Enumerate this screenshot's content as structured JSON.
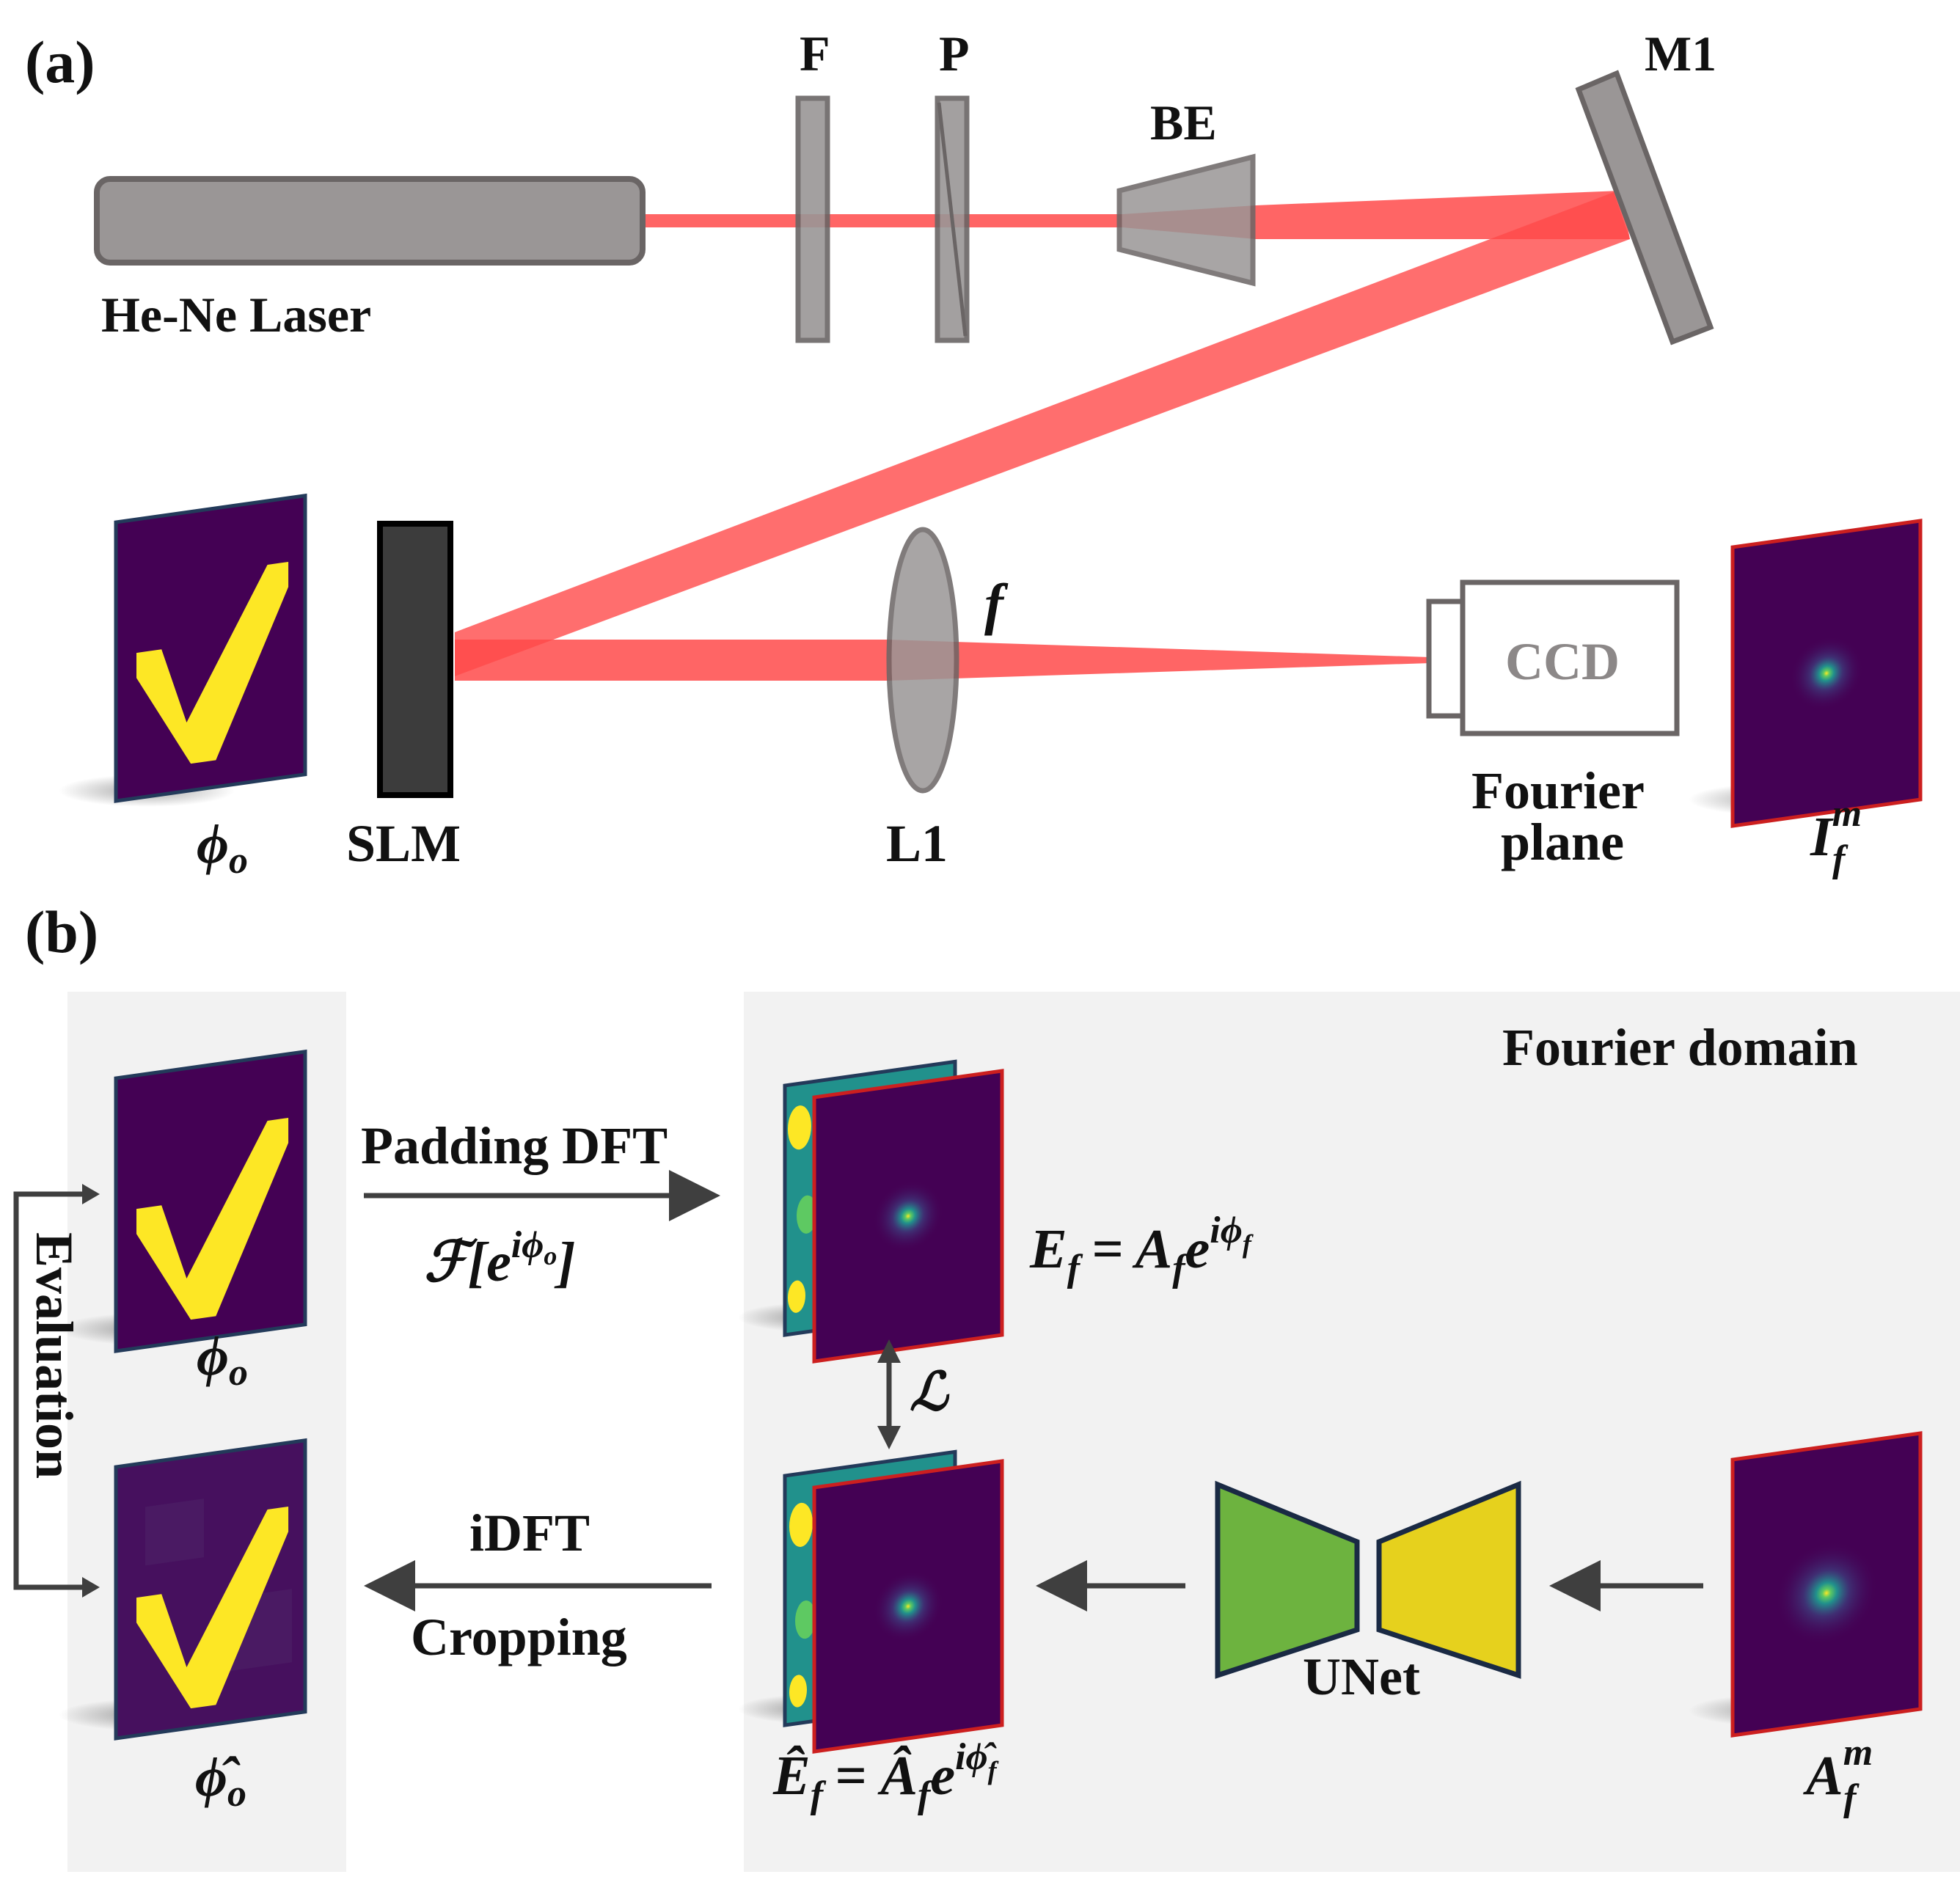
{
  "panels": {
    "a": "(a)",
    "b": "(b)"
  },
  "setup": {
    "laser": "He-Ne Laser",
    "filter": "F",
    "polarizer": "P",
    "beam_expander": "BE",
    "mirror": "M1",
    "slm": "SLM",
    "lens": "L1",
    "focal": "f",
    "camera": "CCD",
    "fourier_plane_1": "Fourier",
    "fourier_plane_2": "plane",
    "phi_o": "ϕ",
    "phi_o_sub": "o",
    "if_main": "I",
    "if_sub": "f",
    "if_sup": "m"
  },
  "pipeline": {
    "fourier_domain": "Fourier domain",
    "padding_dft": "Padding DFT",
    "fft_F": "ℱ[",
    "fft_e": "e",
    "fft_sup": "iϕ",
    "fft_sup_sub": "o",
    "fft_close": "]",
    "evaluation": "Evaluation",
    "phi_o": "ϕ",
    "phi_o_sub": "o",
    "phi_hat": "ϕ̂",
    "phi_hat_sub": "o",
    "idft": "iDFT",
    "cropping": "Cropping",
    "unet": "UNet",
    "loss": "ℒ",
    "ef_lhs": "E",
    "ef_sub": "f",
    "ef_eq": "= A",
    "ef_a_sub": "f",
    "ef_e": "e",
    "ef_sup": "iϕ",
    "ef_sup_sub": "f",
    "efhat_lhs": "Ê",
    "efhat_sub": "f",
    "efhat_eq": "= Â",
    "efhat_a_sub": "f",
    "efhat_e": "e",
    "efhat_sup": "iϕ̂",
    "efhat_sup_sub": "f",
    "am_main": "A",
    "am_sub": "f",
    "am_sup": "m"
  },
  "colors": {
    "beam": "#ff4a4a",
    "optic_gray": "#9a9696",
    "optic_stroke": "#6a6565",
    "slm_fill": "#3c3c3c",
    "viridis_dark": "#440154",
    "viridis_yellow": "#fde725",
    "viridis_teal": "#21918c",
    "unet_green": "#6db33f",
    "unet_yellow": "#e6d11d",
    "panel_bg": "#f2f2f2",
    "frame_red": "#cc1f1f",
    "frame_navy": "#233a5a"
  }
}
